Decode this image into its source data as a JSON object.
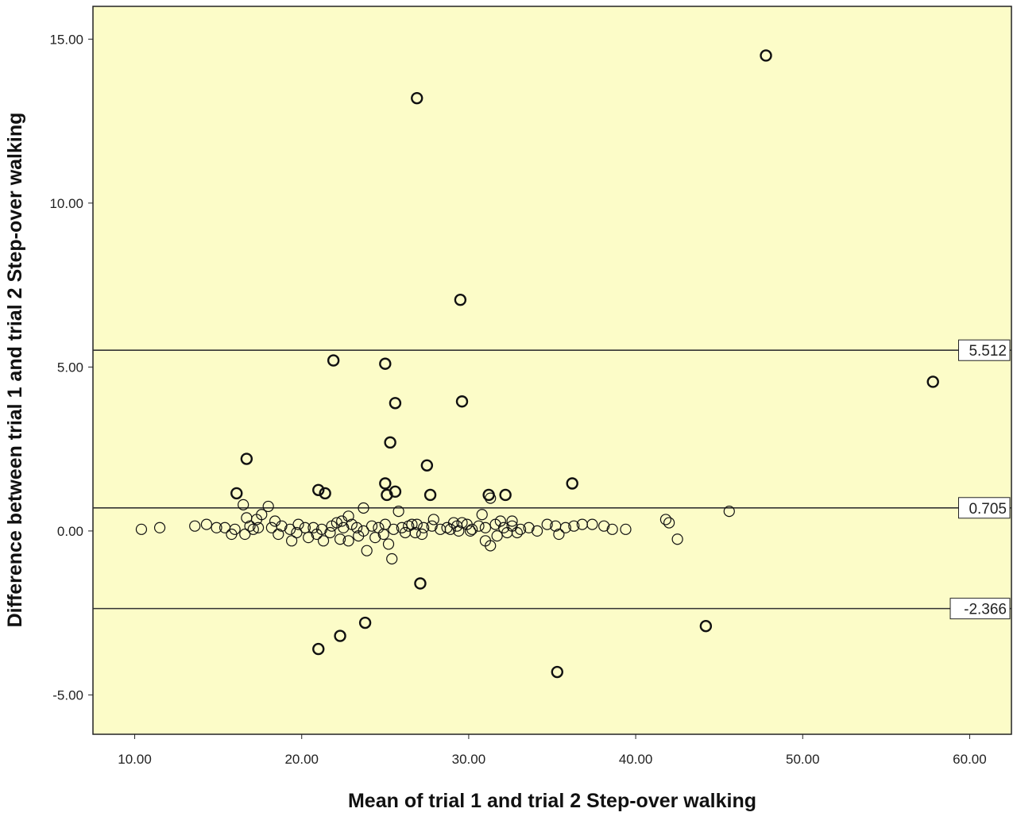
{
  "colors": {
    "plot_background": "#fcfcc8",
    "marker_stroke": "#111111",
    "line": "#333333"
  },
  "chart_data": {
    "type": "scatter",
    "xlabel": "Mean of trial 1 and trial 2 Step-over walking",
    "ylabel": "Difference between trial 1 and trial 2 Step-over walking",
    "xlim": [
      7.5,
      62.5
    ],
    "ylim": [
      -6.2,
      16.0
    ],
    "x_ticks": [
      {
        "value": 10,
        "label": "10.00"
      },
      {
        "value": 20,
        "label": "20.00"
      },
      {
        "value": 30,
        "label": "30.00"
      },
      {
        "value": 40,
        "label": "40.00"
      },
      {
        "value": 50,
        "label": "50.00"
      },
      {
        "value": 60,
        "label": "60.00"
      }
    ],
    "y_ticks": [
      {
        "value": -5,
        "label": "-5.00"
      },
      {
        "value": 0,
        "label": "0.00"
      },
      {
        "value": 5,
        "label": "5.00"
      },
      {
        "value": 10,
        "label": "10.00"
      },
      {
        "value": 15,
        "label": "15.00"
      }
    ],
    "reference_lines": [
      {
        "value": 5.512,
        "label": "5.512"
      },
      {
        "value": 0.705,
        "label": "0.705"
      },
      {
        "value": -2.366,
        "label": "-2.366"
      }
    ],
    "grid": false,
    "legend": "none",
    "marker": "open-circle",
    "points": [
      [
        47.8,
        14.5
      ],
      [
        26.9,
        13.2
      ],
      [
        29.5,
        7.05
      ],
      [
        21.9,
        5.2
      ],
      [
        25.0,
        5.1
      ],
      [
        57.8,
        4.55
      ],
      [
        25.6,
        3.9
      ],
      [
        29.6,
        3.95
      ],
      [
        25.3,
        2.7
      ],
      [
        16.7,
        2.2
      ],
      [
        27.5,
        2.0
      ],
      [
        36.2,
        1.45
      ],
      [
        25.0,
        1.45
      ],
      [
        21.0,
        1.25
      ],
      [
        21.4,
        1.15
      ],
      [
        25.6,
        1.2
      ],
      [
        25.1,
        1.1
      ],
      [
        16.1,
        1.15
      ],
      [
        27.7,
        1.1
      ],
      [
        31.2,
        1.1
      ],
      [
        31.3,
        1.0
      ],
      [
        32.2,
        1.1
      ],
      [
        16.5,
        0.8
      ],
      [
        18.0,
        0.75
      ],
      [
        23.7,
        0.7
      ],
      [
        25.8,
        0.6
      ],
      [
        45.6,
        0.6
      ],
      [
        30.8,
        0.5
      ],
      [
        17.6,
        0.5
      ],
      [
        22.8,
        0.45
      ],
      [
        16.7,
        0.4
      ],
      [
        17.3,
        0.35
      ],
      [
        18.4,
        0.3
      ],
      [
        22.4,
        0.3
      ],
      [
        27.9,
        0.35
      ],
      [
        31.9,
        0.3
      ],
      [
        41.8,
        0.35
      ],
      [
        42.0,
        0.25
      ],
      [
        32.6,
        0.3
      ],
      [
        29.1,
        0.25
      ],
      [
        26.6,
        0.2
      ],
      [
        10.4,
        0.05
      ],
      [
        11.5,
        0.1
      ],
      [
        13.6,
        0.15
      ],
      [
        14.3,
        0.2
      ],
      [
        14.9,
        0.1
      ],
      [
        15.4,
        0.1
      ],
      [
        16.0,
        0.05
      ],
      [
        16.9,
        0.15
      ],
      [
        17.4,
        0.1
      ],
      [
        18.2,
        0.1
      ],
      [
        18.8,
        0.15
      ],
      [
        19.3,
        0.05
      ],
      [
        19.8,
        0.2
      ],
      [
        20.2,
        0.1
      ],
      [
        20.7,
        0.1
      ],
      [
        21.2,
        0.05
      ],
      [
        21.8,
        0.15
      ],
      [
        22.1,
        0.25
      ],
      [
        22.5,
        0.1
      ],
      [
        23.0,
        0.2
      ],
      [
        23.3,
        0.1
      ],
      [
        23.7,
        0.0
      ],
      [
        24.2,
        0.15
      ],
      [
        24.6,
        0.1
      ],
      [
        25.0,
        0.2
      ],
      [
        25.5,
        0.05
      ],
      [
        26.0,
        0.1
      ],
      [
        26.4,
        0.15
      ],
      [
        26.9,
        0.2
      ],
      [
        27.3,
        0.1
      ],
      [
        27.8,
        0.15
      ],
      [
        28.3,
        0.05
      ],
      [
        28.7,
        0.1
      ],
      [
        29.3,
        0.15
      ],
      [
        29.6,
        0.25
      ],
      [
        29.9,
        0.2
      ],
      [
        30.2,
        0.05
      ],
      [
        30.6,
        0.15
      ],
      [
        31.0,
        0.1
      ],
      [
        31.6,
        0.2
      ],
      [
        32.1,
        0.1
      ],
      [
        32.6,
        0.15
      ],
      [
        33.1,
        0.05
      ],
      [
        33.6,
        0.1
      ],
      [
        34.1,
        0.0
      ],
      [
        34.7,
        0.2
      ],
      [
        35.2,
        0.15
      ],
      [
        35.8,
        0.1
      ],
      [
        36.3,
        0.15
      ],
      [
        36.8,
        0.2
      ],
      [
        37.4,
        0.2
      ],
      [
        38.1,
        0.15
      ],
      [
        38.6,
        0.05
      ],
      [
        39.4,
        0.05
      ],
      [
        15.8,
        -0.1
      ],
      [
        16.6,
        -0.1
      ],
      [
        17.1,
        0.05
      ],
      [
        18.6,
        -0.1
      ],
      [
        19.4,
        -0.3
      ],
      [
        19.7,
        -0.05
      ],
      [
        20.4,
        -0.2
      ],
      [
        20.9,
        -0.1
      ],
      [
        21.3,
        -0.3
      ],
      [
        21.7,
        -0.05
      ],
      [
        22.3,
        -0.25
      ],
      [
        22.8,
        -0.3
      ],
      [
        23.4,
        -0.15
      ],
      [
        23.9,
        -0.6
      ],
      [
        24.4,
        -0.2
      ],
      [
        24.9,
        -0.1
      ],
      [
        25.2,
        -0.4
      ],
      [
        25.4,
        -0.85
      ],
      [
        26.2,
        -0.05
      ],
      [
        26.8,
        -0.05
      ],
      [
        27.2,
        -0.1
      ],
      [
        28.9,
        0.05
      ],
      [
        29.4,
        0.0
      ],
      [
        30.1,
        0.0
      ],
      [
        31.0,
        -0.3
      ],
      [
        31.3,
        -0.45
      ],
      [
        31.7,
        -0.15
      ],
      [
        32.3,
        -0.05
      ],
      [
        32.9,
        -0.05
      ],
      [
        35.4,
        -0.1
      ],
      [
        42.5,
        -0.25
      ],
      [
        27.1,
        -1.6
      ],
      [
        23.8,
        -2.8
      ],
      [
        22.3,
        -3.2
      ],
      [
        21.0,
        -3.6
      ],
      [
        44.2,
        -2.9
      ],
      [
        35.3,
        -4.3
      ]
    ]
  }
}
